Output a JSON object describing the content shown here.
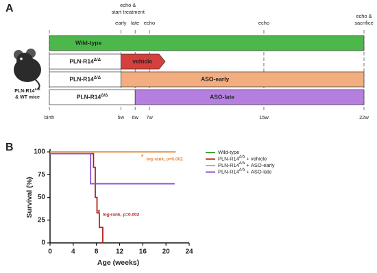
{
  "panel_a": {
    "label": "A",
    "xlim": [
      0,
      22
    ],
    "ticks": [
      {
        "value": 0,
        "label": "birth"
      },
      {
        "value": 5,
        "label": "5w"
      },
      {
        "value": 6,
        "label": "6w"
      },
      {
        "value": 7,
        "label": "7w"
      },
      {
        "value": 15,
        "label": "15w"
      },
      {
        "value": 22,
        "label": "22w"
      }
    ],
    "header": {
      "value": 5.5,
      "lines": [
        "echo &",
        "start treatment"
      ]
    },
    "events": [
      {
        "value": 5,
        "lines": [
          "early"
        ]
      },
      {
        "value": 6,
        "lines": [
          "late"
        ]
      },
      {
        "value": 7,
        "lines": [
          "echo"
        ]
      },
      {
        "value": 15,
        "lines": [
          "echo"
        ]
      },
      {
        "value": 22,
        "lines": [
          "echo &",
          "sacrifice"
        ]
      }
    ],
    "rows": [
      {
        "genotype": "Wild-type",
        "start": 0,
        "end": 22,
        "color": "#4cb84c"
      },
      {
        "genotype": "PLN-R14Δ/Δ",
        "start": 0,
        "treatment": {
          "label": "vehicle",
          "start": 5,
          "end": 8.1,
          "color": "#d5403e",
          "arrow": true
        }
      },
      {
        "genotype": "PLN-R14Δ/Δ",
        "start": 0,
        "treatment": {
          "label": "ASO-early",
          "start": 5,
          "end": 22,
          "color": "#f2ad80"
        }
      },
      {
        "genotype": "PLN-R14Δ/Δ",
        "start": 0,
        "treatment": {
          "label": "ASO-late",
          "start": 6,
          "end": 22,
          "color": "#b57fe0"
        }
      }
    ],
    "mouse_caption": [
      "PLN-R14Δ/Δ",
      "& WT mice"
    ]
  },
  "chart_data": {
    "type": "line",
    "label": "B",
    "x_label": "Age (weeks)",
    "y_label": "Survival (%)",
    "xlim": [
      0,
      24
    ],
    "xticks": [
      0,
      4,
      8,
      12,
      16,
      20,
      24
    ],
    "ylim": [
      0,
      100
    ],
    "yticks": [
      0,
      25,
      50,
      75,
      100
    ],
    "legend": "right",
    "series": [
      {
        "name": "Wild-type",
        "color": "#3aa83a",
        "x": [
          0,
          21.5
        ],
        "values": [
          100,
          100
        ]
      },
      {
        "name": "PLN-R14Δ/Δ + vehicle",
        "color": "#b0201e",
        "x": [
          0,
          7.5,
          7.5,
          7.8,
          7.8,
          8.1,
          8.1,
          8.5,
          8.5,
          9.1,
          9.1
        ],
        "values": [
          98,
          98,
          83,
          83,
          50,
          50,
          33,
          33,
          17,
          17,
          0
        ]
      },
      {
        "name": "PLN-R14Δ/Δ + ASO-early",
        "color": "#ef9e5f",
        "x": [
          0,
          21.7
        ],
        "values": [
          100,
          100
        ]
      },
      {
        "name": "PLN-R14Δ/Δ + ASO-late",
        "color": "#8a4fd0",
        "x": [
          0,
          7,
          7,
          21.5
        ],
        "values": [
          98,
          98,
          65,
          65
        ]
      }
    ],
    "annotations": [
      {
        "mark": "*",
        "text": "log-rank, p=0.002",
        "x": 16.6,
        "y": 92,
        "color": "#e8893f"
      },
      {
        "mark": "*",
        "text": "log-rank, p=0.002",
        "x": 9.1,
        "y": 31,
        "color": "#b0201e"
      }
    ]
  }
}
